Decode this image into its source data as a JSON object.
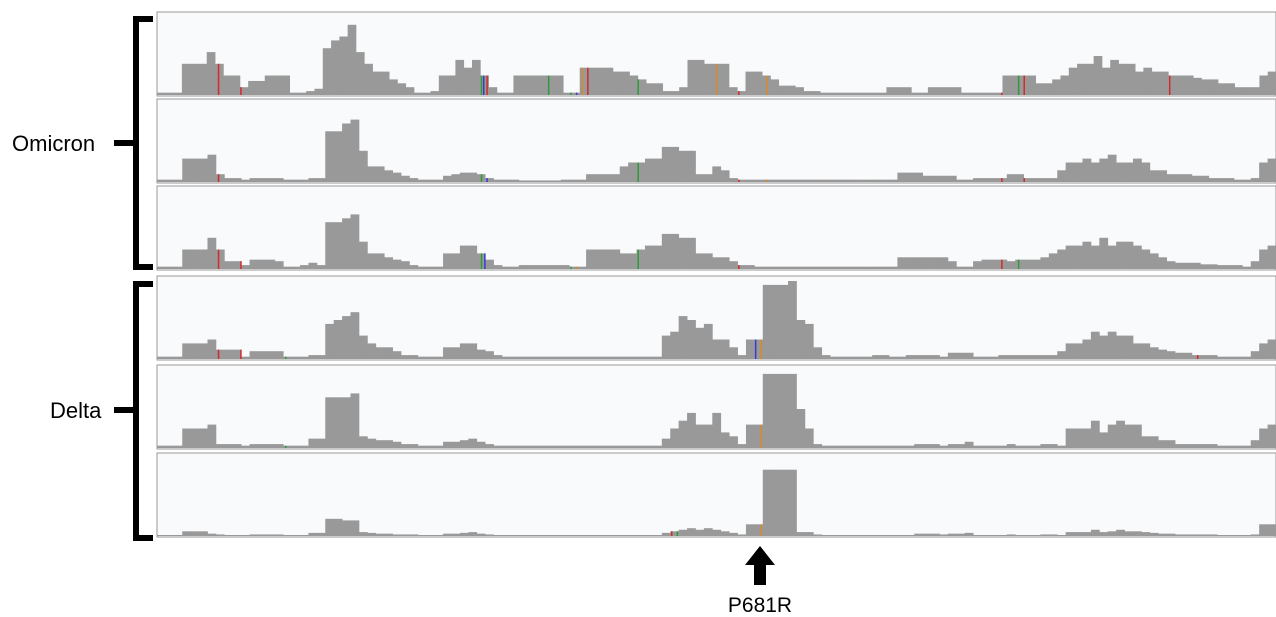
{
  "groups": [
    {
      "label": "Omicron",
      "tracks": 3
    },
    {
      "label": "Delta",
      "tracks": 3
    }
  ],
  "marker": {
    "label": "P681R"
  },
  "colors": {
    "coverage_bar": "#999999",
    "track_background": "#f9fafc",
    "track_border": "#9a9a9a",
    "snp_red": "#d22b2b",
    "snp_green": "#2e9a3a",
    "snp_blue": "#3a3ad2",
    "snp_orange": "#d9892a",
    "bracket": "#000000"
  },
  "chart_data": {
    "type": "coverage-tracks",
    "tracks": [
      {
        "group": "Omicron",
        "coverage": [
          0.03,
          0.03,
          0.03,
          0.4,
          0.4,
          0.4,
          0.55,
          0.4,
          0.25,
          0.25,
          0.1,
          0.18,
          0.18,
          0.25,
          0.25,
          0.25,
          0.03,
          0.03,
          0.05,
          0.08,
          0.6,
          0.7,
          0.75,
          0.9,
          0.55,
          0.4,
          0.3,
          0.3,
          0.2,
          0.15,
          0.1,
          0.03,
          0.03,
          0.05,
          0.25,
          0.25,
          0.45,
          0.35,
          0.45,
          0.25,
          0.1,
          0.03,
          0.03,
          0.25,
          0.25,
          0.25,
          0.25,
          0.25,
          0.25,
          0.03,
          0.03,
          0.35,
          0.35,
          0.35,
          0.35,
          0.3,
          0.3,
          0.25,
          0.2,
          0.15,
          0.15,
          0.05,
          0.05,
          0.1,
          0.45,
          0.45,
          0.4,
          0.4,
          0.4,
          0.1,
          0.05,
          0.3,
          0.3,
          0.25,
          0.2,
          0.12,
          0.12,
          0.1,
          0.05,
          0.05,
          0.03,
          0.03,
          0.03,
          0.03,
          0.03,
          0.03,
          0.03,
          0.03,
          0.1,
          0.1,
          0.1,
          0.03,
          0.03,
          0.1,
          0.1,
          0.1,
          0.1,
          0.03,
          0.03,
          0.03,
          0.03,
          0.03,
          0.25,
          0.25,
          0.25,
          0.25,
          0.15,
          0.15,
          0.2,
          0.25,
          0.35,
          0.4,
          0.4,
          0.5,
          0.35,
          0.45,
          0.4,
          0.4,
          0.3,
          0.35,
          0.3,
          0.3,
          0.25,
          0.25,
          0.25,
          0.22,
          0.2,
          0.2,
          0.15,
          0.15,
          0.1,
          0.1,
          0.1,
          0.25,
          0.3
        ],
        "snps": [
          {
            "pos": 0.055,
            "color": "red"
          },
          {
            "pos": 0.075,
            "color": "red"
          },
          {
            "pos": 0.29,
            "color": "green"
          },
          {
            "pos": 0.292,
            "color": "blue"
          },
          {
            "pos": 0.295,
            "color": "red"
          },
          {
            "pos": 0.35,
            "color": "green"
          },
          {
            "pos": 0.37,
            "color": "green"
          },
          {
            "pos": 0.375,
            "color": "blue"
          },
          {
            "pos": 0.38,
            "color": "orange"
          },
          {
            "pos": 0.385,
            "color": "red"
          },
          {
            "pos": 0.43,
            "color": "green"
          },
          {
            "pos": 0.5,
            "color": "orange"
          },
          {
            "pos": 0.52,
            "color": "red"
          },
          {
            "pos": 0.545,
            "color": "orange"
          },
          {
            "pos": 0.755,
            "color": "red"
          },
          {
            "pos": 0.77,
            "color": "green"
          },
          {
            "pos": 0.775,
            "color": "red"
          },
          {
            "pos": 0.905,
            "color": "red"
          }
        ]
      },
      {
        "group": "Omicron",
        "coverage": [
          0.03,
          0.03,
          0.03,
          0.3,
          0.3,
          0.3,
          0.35,
          0.1,
          0.05,
          0.05,
          0.03,
          0.05,
          0.05,
          0.05,
          0.05,
          0.03,
          0.03,
          0.03,
          0.05,
          0.05,
          0.65,
          0.65,
          0.75,
          0.8,
          0.4,
          0.2,
          0.2,
          0.15,
          0.12,
          0.08,
          0.05,
          0.03,
          0.03,
          0.03,
          0.08,
          0.1,
          0.12,
          0.12,
          0.1,
          0.05,
          0.03,
          0.03,
          0.03,
          0.02,
          0.02,
          0.02,
          0.02,
          0.02,
          0.03,
          0.03,
          0.03,
          0.1,
          0.1,
          0.1,
          0.1,
          0.2,
          0.25,
          0.25,
          0.3,
          0.3,
          0.45,
          0.45,
          0.4,
          0.4,
          0.1,
          0.1,
          0.2,
          0.15,
          0.05,
          0.03,
          0.03,
          0.03,
          0.03,
          0.03,
          0.03,
          0.03,
          0.03,
          0.03,
          0.03,
          0.03,
          0.03,
          0.03,
          0.03,
          0.03,
          0.03,
          0.03,
          0.03,
          0.03,
          0.12,
          0.12,
          0.12,
          0.08,
          0.08,
          0.08,
          0.08,
          0.03,
          0.03,
          0.05,
          0.05,
          0.05,
          0.05,
          0.1,
          0.1,
          0.05,
          0.05,
          0.05,
          0.05,
          0.15,
          0.25,
          0.25,
          0.3,
          0.25,
          0.3,
          0.35,
          0.25,
          0.25,
          0.3,
          0.25,
          0.15,
          0.15,
          0.1,
          0.1,
          0.1,
          0.08,
          0.08,
          0.05,
          0.05,
          0.05,
          0.03,
          0.03,
          0.05,
          0.25,
          0.3
        ],
        "snps": [
          {
            "pos": 0.055,
            "color": "red"
          },
          {
            "pos": 0.29,
            "color": "green"
          },
          {
            "pos": 0.295,
            "color": "blue"
          },
          {
            "pos": 0.43,
            "color": "green"
          },
          {
            "pos": 0.52,
            "color": "red"
          },
          {
            "pos": 0.545,
            "color": "orange"
          },
          {
            "pos": 0.755,
            "color": "red"
          },
          {
            "pos": 0.775,
            "color": "red"
          }
        ]
      },
      {
        "group": "Omicron",
        "coverage": [
          0.03,
          0.03,
          0.03,
          0.25,
          0.25,
          0.25,
          0.4,
          0.25,
          0.1,
          0.1,
          0.05,
          0.12,
          0.12,
          0.12,
          0.1,
          0.03,
          0.03,
          0.05,
          0.08,
          0.05,
          0.6,
          0.6,
          0.65,
          0.7,
          0.35,
          0.2,
          0.2,
          0.15,
          0.12,
          0.1,
          0.05,
          0.03,
          0.03,
          0.03,
          0.2,
          0.2,
          0.3,
          0.3,
          0.2,
          0.12,
          0.05,
          0.03,
          0.03,
          0.05,
          0.05,
          0.05,
          0.05,
          0.05,
          0.05,
          0.03,
          0.03,
          0.25,
          0.25,
          0.25,
          0.25,
          0.2,
          0.2,
          0.25,
          0.3,
          0.3,
          0.45,
          0.45,
          0.4,
          0.4,
          0.2,
          0.2,
          0.15,
          0.15,
          0.1,
          0.05,
          0.05,
          0.03,
          0.03,
          0.03,
          0.03,
          0.03,
          0.03,
          0.03,
          0.03,
          0.03,
          0.03,
          0.03,
          0.03,
          0.03,
          0.03,
          0.03,
          0.03,
          0.03,
          0.15,
          0.15,
          0.15,
          0.15,
          0.15,
          0.15,
          0.1,
          0.03,
          0.03,
          0.1,
          0.12,
          0.12,
          0.12,
          0.1,
          0.12,
          0.12,
          0.12,
          0.15,
          0.2,
          0.25,
          0.3,
          0.3,
          0.35,
          0.3,
          0.4,
          0.3,
          0.35,
          0.35,
          0.3,
          0.25,
          0.2,
          0.15,
          0.1,
          0.08,
          0.08,
          0.08,
          0.06,
          0.06,
          0.05,
          0.05,
          0.05,
          0.03,
          0.1,
          0.25,
          0.3
        ],
        "snps": [
          {
            "pos": 0.055,
            "color": "red"
          },
          {
            "pos": 0.075,
            "color": "red"
          },
          {
            "pos": 0.29,
            "color": "green"
          },
          {
            "pos": 0.293,
            "color": "blue"
          },
          {
            "pos": 0.37,
            "color": "green"
          },
          {
            "pos": 0.375,
            "color": "orange"
          },
          {
            "pos": 0.43,
            "color": "green"
          },
          {
            "pos": 0.52,
            "color": "red"
          },
          {
            "pos": 0.755,
            "color": "red"
          },
          {
            "pos": 0.77,
            "color": "green"
          }
        ]
      },
      {
        "group": "Delta",
        "coverage": [
          0.03,
          0.03,
          0.03,
          0.2,
          0.2,
          0.2,
          0.25,
          0.12,
          0.12,
          0.12,
          0.03,
          0.1,
          0.1,
          0.1,
          0.1,
          0.03,
          0.03,
          0.03,
          0.05,
          0.05,
          0.45,
          0.5,
          0.55,
          0.6,
          0.3,
          0.2,
          0.15,
          0.15,
          0.1,
          0.05,
          0.05,
          0.03,
          0.03,
          0.03,
          0.15,
          0.15,
          0.2,
          0.2,
          0.12,
          0.1,
          0.05,
          0.03,
          0.03,
          0.03,
          0.03,
          0.03,
          0.03,
          0.03,
          0.03,
          0.03,
          0.03,
          0.03,
          0.03,
          0.03,
          0.03,
          0.03,
          0.03,
          0.03,
          0.03,
          0.03,
          0.3,
          0.35,
          0.55,
          0.5,
          0.4,
          0.45,
          0.25,
          0.25,
          0.15,
          0.05,
          0.25,
          0.25,
          0.95,
          0.95,
          0.95,
          1.0,
          0.5,
          0.45,
          0.15,
          0.05,
          0.03,
          0.03,
          0.03,
          0.03,
          0.03,
          0.05,
          0.05,
          0.03,
          0.03,
          0.05,
          0.05,
          0.05,
          0.05,
          0.03,
          0.08,
          0.08,
          0.08,
          0.03,
          0.03,
          0.03,
          0.05,
          0.05,
          0.05,
          0.05,
          0.05,
          0.05,
          0.05,
          0.1,
          0.2,
          0.2,
          0.25,
          0.35,
          0.3,
          0.35,
          0.3,
          0.3,
          0.2,
          0.2,
          0.15,
          0.12,
          0.1,
          0.08,
          0.08,
          0.05,
          0.05,
          0.05,
          0.03,
          0.03,
          0.03,
          0.03,
          0.1,
          0.2,
          0.25
        ],
        "snps": [
          {
            "pos": 0.055,
            "color": "red"
          },
          {
            "pos": 0.075,
            "color": "red"
          },
          {
            "pos": 0.115,
            "color": "green"
          },
          {
            "pos": 0.535,
            "color": "blue"
          },
          {
            "pos": 0.54,
            "color": "orange"
          },
          {
            "pos": 0.93,
            "color": "red"
          }
        ]
      },
      {
        "group": "Delta",
        "coverage": [
          0.03,
          0.03,
          0.03,
          0.25,
          0.25,
          0.25,
          0.3,
          0.05,
          0.05,
          0.05,
          0.03,
          0.05,
          0.05,
          0.05,
          0.05,
          0.03,
          0.03,
          0.03,
          0.12,
          0.12,
          0.65,
          0.65,
          0.65,
          0.7,
          0.15,
          0.12,
          0.1,
          0.1,
          0.08,
          0.05,
          0.05,
          0.03,
          0.03,
          0.03,
          0.08,
          0.08,
          0.1,
          0.12,
          0.08,
          0.05,
          0.03,
          0.03,
          0.03,
          0.03,
          0.03,
          0.03,
          0.03,
          0.03,
          0.03,
          0.03,
          0.03,
          0.03,
          0.03,
          0.03,
          0.03,
          0.03,
          0.03,
          0.03,
          0.03,
          0.03,
          0.12,
          0.25,
          0.35,
          0.45,
          0.3,
          0.3,
          0.45,
          0.2,
          0.15,
          0.05,
          0.3,
          0.3,
          0.95,
          0.95,
          0.95,
          0.95,
          0.5,
          0.25,
          0.05,
          0.03,
          0.03,
          0.03,
          0.03,
          0.03,
          0.03,
          0.03,
          0.03,
          0.03,
          0.03,
          0.03,
          0.05,
          0.05,
          0.05,
          0.03,
          0.05,
          0.05,
          0.08,
          0.03,
          0.03,
          0.03,
          0.03,
          0.05,
          0.03,
          0.03,
          0.03,
          0.05,
          0.05,
          0.03,
          0.25,
          0.25,
          0.25,
          0.35,
          0.2,
          0.3,
          0.35,
          0.3,
          0.3,
          0.15,
          0.15,
          0.1,
          0.1,
          0.05,
          0.05,
          0.05,
          0.05,
          0.05,
          0.03,
          0.03,
          0.03,
          0.03,
          0.1,
          0.25,
          0.3
        ],
        "snps": [
          {
            "pos": 0.115,
            "color": "green"
          },
          {
            "pos": 0.54,
            "color": "orange"
          }
        ]
      },
      {
        "group": "Delta",
        "coverage": [
          0.01,
          0.01,
          0.01,
          0.06,
          0.06,
          0.06,
          0.03,
          0.02,
          0.01,
          0.01,
          0.01,
          0.02,
          0.02,
          0.02,
          0.02,
          0.01,
          0.01,
          0.01,
          0.04,
          0.04,
          0.22,
          0.22,
          0.2,
          0.2,
          0.05,
          0.04,
          0.03,
          0.03,
          0.02,
          0.02,
          0.02,
          0.01,
          0.01,
          0.01,
          0.03,
          0.03,
          0.04,
          0.05,
          0.03,
          0.02,
          0.01,
          0.01,
          0.01,
          0.01,
          0.01,
          0.01,
          0.01,
          0.01,
          0.01,
          0.01,
          0.01,
          0.01,
          0.01,
          0.01,
          0.01,
          0.01,
          0.01,
          0.01,
          0.01,
          0.01,
          0.04,
          0.06,
          0.08,
          0.1,
          0.08,
          0.1,
          0.08,
          0.06,
          0.04,
          0.02,
          0.15,
          0.15,
          0.85,
          0.85,
          0.85,
          0.85,
          0.05,
          0.05,
          0.02,
          0.01,
          0.01,
          0.01,
          0.01,
          0.01,
          0.01,
          0.01,
          0.01,
          0.01,
          0.01,
          0.01,
          0.03,
          0.03,
          0.03,
          0.02,
          0.03,
          0.03,
          0.04,
          0.01,
          0.01,
          0.01,
          0.01,
          0.02,
          0.01,
          0.01,
          0.01,
          0.02,
          0.02,
          0.01,
          0.05,
          0.05,
          0.05,
          0.08,
          0.05,
          0.06,
          0.08,
          0.06,
          0.06,
          0.05,
          0.04,
          0.03,
          0.03,
          0.02,
          0.02,
          0.02,
          0.02,
          0.02,
          0.01,
          0.01,
          0.01,
          0.01,
          0.02,
          0.15,
          0.15
        ],
        "snps": [
          {
            "pos": 0.46,
            "color": "red"
          },
          {
            "pos": 0.465,
            "color": "green"
          },
          {
            "pos": 0.54,
            "color": "orange"
          }
        ]
      }
    ]
  }
}
